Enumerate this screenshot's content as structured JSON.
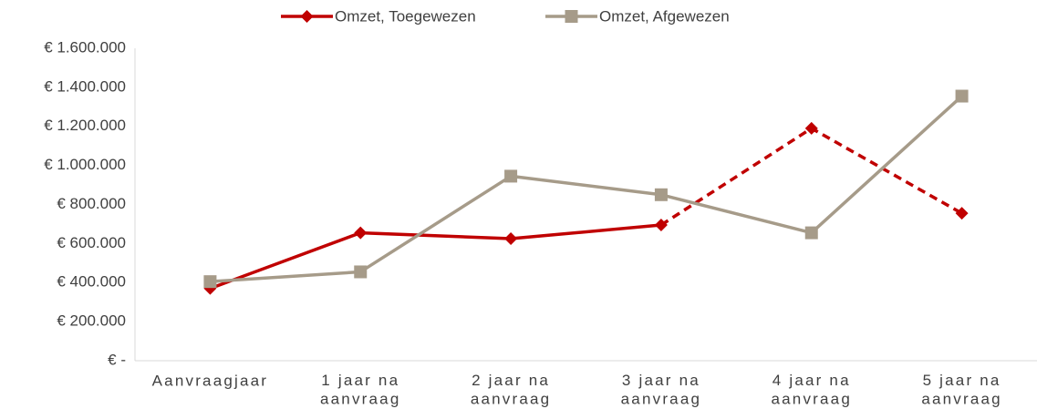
{
  "chart_data": {
    "type": "line",
    "categories": [
      "Aanvraagjaar",
      "1 jaar na\naanvraag",
      "2 jaar na\naanvraag",
      "3 jaar na\naanvraag",
      "4 jaar na\naanvraag",
      "5 jaar na\naanvraag"
    ],
    "series": [
      {
        "name": "Omzet, Toegewezen",
        "color": "#c00000",
        "marker": "diamond",
        "dashed_from": 3,
        "values": [
          370000,
          655000,
          625000,
          695000,
          1190000,
          755000
        ]
      },
      {
        "name": "Omzet, Afgewezen",
        "color": "#a69b89",
        "marker": "square",
        "values": [
          405000,
          455000,
          945000,
          850000,
          655000,
          1355000
        ]
      }
    ],
    "ylim": [
      0,
      1600000
    ],
    "yticks": [
      {
        "value": 0,
        "label": "€ -"
      },
      {
        "value": 200000,
        "label": "€ 200.000"
      },
      {
        "value": 400000,
        "label": "€ 400.000"
      },
      {
        "value": 600000,
        "label": "€ 600.000"
      },
      {
        "value": 800000,
        "label": "€ 800.000"
      },
      {
        "value": 1000000,
        "label": "€ 1.000.000"
      },
      {
        "value": 1200000,
        "label": "€ 1.200.000"
      },
      {
        "value": 1400000,
        "label": "€ 1.400.000"
      },
      {
        "value": 1600000,
        "label": "€ 1.600.000"
      }
    ],
    "grid": false,
    "legend": "top"
  }
}
